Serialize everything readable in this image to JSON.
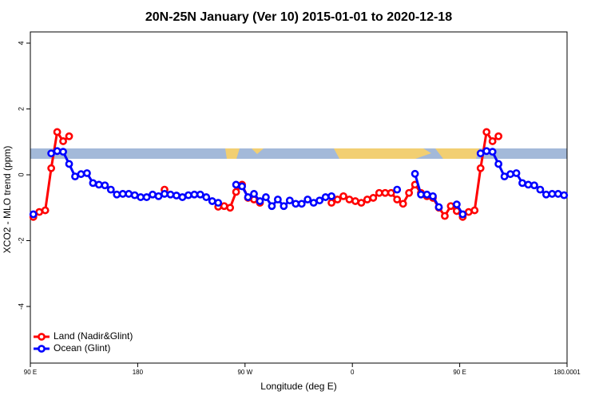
{
  "chart_data": {
    "type": "line",
    "title": "20N-25N January (Ver 10)   2015-01-01 to 2020-12-18",
    "x_label": "Longitude (deg E)",
    "y_label": "XCO2 - MLO trend (ppm)",
    "x": [
      92.5,
      97.5,
      102.5,
      107.5,
      112.5,
      117.5,
      122.5,
      127.5,
      132.5,
      137.5,
      142.5,
      147.5,
      152.5,
      157.5,
      162.5,
      167.5,
      172.5,
      177.5,
      182.5,
      187.5,
      192.5,
      197.5,
      202.5,
      207.5,
      212.5,
      217.5,
      222.5,
      227.5,
      232.5,
      237.5,
      242.5,
      247.5,
      252.5,
      257.5,
      262.5,
      267.5,
      272.5,
      277.5,
      282.5,
      287.5,
      292.5,
      297.5,
      302.5,
      307.5,
      312.5,
      317.5,
      322.5,
      327.5,
      332.5,
      337.5,
      342.5,
      347.5,
      352.5,
      357.5,
      362.5,
      367.5,
      372.5,
      377.5,
      382.5,
      387.5,
      392.5,
      397.5,
      402.5,
      407.5,
      412.5,
      417.5,
      422.5,
      427.5,
      432.5,
      437.5,
      442.5,
      447.5,
      452.5,
      457.5,
      462.5,
      467.5,
      472.5,
      477.5,
      482.5,
      487.5,
      492.5,
      497.5,
      502.5,
      507.5,
      512.5,
      517.5,
      522.5,
      527.5,
      532.5,
      537.5
    ],
    "series": [
      {
        "name": "Land (Nadir&Glint)",
        "color": "#ff0000",
        "values": [
          -1.28,
          -1.13,
          -1.08,
          0.2,
          1.3,
          1.02,
          1.17,
          null,
          null,
          null,
          null,
          null,
          null,
          null,
          null,
          null,
          null,
          null,
          null,
          null,
          null,
          null,
          -0.45,
          null,
          null,
          null,
          null,
          null,
          null,
          null,
          null,
          -0.97,
          -0.95,
          -1.0,
          -0.52,
          -0.3,
          -0.7,
          -0.75,
          -0.85,
          null,
          null,
          null,
          null,
          null,
          null,
          null,
          null,
          null,
          null,
          null,
          -0.85,
          -0.75,
          -0.65,
          -0.75,
          -0.8,
          -0.85,
          -0.75,
          -0.7,
          -0.55,
          -0.55,
          -0.55,
          -0.75,
          -0.88,
          -0.55,
          -0.3,
          -0.55,
          -0.65,
          -0.7,
          -1.0,
          -1.25,
          -0.95,
          -1.1,
          -1.28,
          -1.13,
          -1.08,
          0.2,
          1.3,
          1.02,
          1.17,
          null,
          null,
          null,
          null,
          null,
          null,
          null,
          null,
          null,
          null,
          null
        ]
      },
      {
        "name": "Ocean (Glint)",
        "color": "#0000ff",
        "values": [
          -1.2,
          null,
          null,
          0.65,
          0.72,
          0.7,
          0.33,
          -0.05,
          0.02,
          0.05,
          -0.25,
          -0.3,
          -0.32,
          -0.45,
          -0.6,
          -0.58,
          -0.58,
          -0.62,
          -0.68,
          -0.68,
          -0.6,
          -0.65,
          -0.58,
          -0.6,
          -0.63,
          -0.68,
          -0.62,
          -0.6,
          -0.6,
          -0.68,
          -0.8,
          -0.85,
          null,
          null,
          -0.3,
          -0.35,
          -0.68,
          -0.58,
          -0.8,
          -0.68,
          -0.95,
          -0.75,
          -0.95,
          -0.78,
          -0.88,
          -0.88,
          -0.75,
          -0.85,
          -0.78,
          -0.68,
          -0.65,
          null,
          null,
          null,
          null,
          null,
          null,
          null,
          null,
          null,
          null,
          -0.45,
          null,
          null,
          0.03,
          -0.6,
          -0.6,
          -0.65,
          -0.98,
          null,
          null,
          -0.9,
          -1.2,
          null,
          null,
          0.65,
          0.72,
          0.7,
          0.33,
          -0.05,
          0.02,
          0.05,
          -0.25,
          -0.3,
          -0.32,
          -0.45,
          -0.6,
          -0.58,
          -0.58,
          -0.62
        ]
      }
    ],
    "xlim": [
      90,
      540
    ],
    "xticks": [
      {
        "value": 90,
        "label": "90 E"
      },
      180,
      {
        "value": 270,
        "label": "90 W"
      },
      {
        "value": 360,
        "label": "0"
      },
      {
        "value": 450,
        "label": "90 E"
      },
      180.0001
    ],
    "ylim": [
      -5.72,
      4.34
    ],
    "yticks": [
      -4,
      -2,
      0,
      2,
      4
    ],
    "legend": "bottomleft"
  }
}
